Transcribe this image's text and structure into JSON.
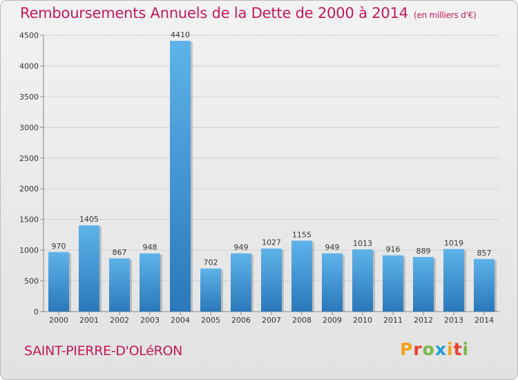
{
  "title": "Remboursements Annuels de la Dette de 2000 à 2014",
  "unit": "(en milliers d'€)",
  "town": "SAINT-PIERRE-D'OLéRON",
  "brand": "Proxiti",
  "colors": {
    "title": "#c2185b",
    "bar_top": "#5eb3ea",
    "bar_bottom": "#2a78ba",
    "frame": "#b9b9b9"
  },
  "chart_data": {
    "type": "bar",
    "title": "Remboursements Annuels de la Dette de 2000 à 2014",
    "categories": [
      "2000",
      "2001",
      "2002",
      "2003",
      "2004",
      "2005",
      "2006",
      "2007",
      "2008",
      "2009",
      "2010",
      "2011",
      "2012",
      "2013",
      "2014"
    ],
    "values": [
      970,
      1405,
      867,
      948,
      4410,
      702,
      949,
      1027,
      1155,
      949,
      1013,
      916,
      889,
      1019,
      857
    ],
    "yticks": [
      0,
      500,
      1000,
      1500,
      2000,
      2500,
      3000,
      3500,
      4000,
      4500
    ],
    "ylim": [
      0,
      4500
    ],
    "grid": true,
    "xlabel": "",
    "ylabel": ""
  }
}
